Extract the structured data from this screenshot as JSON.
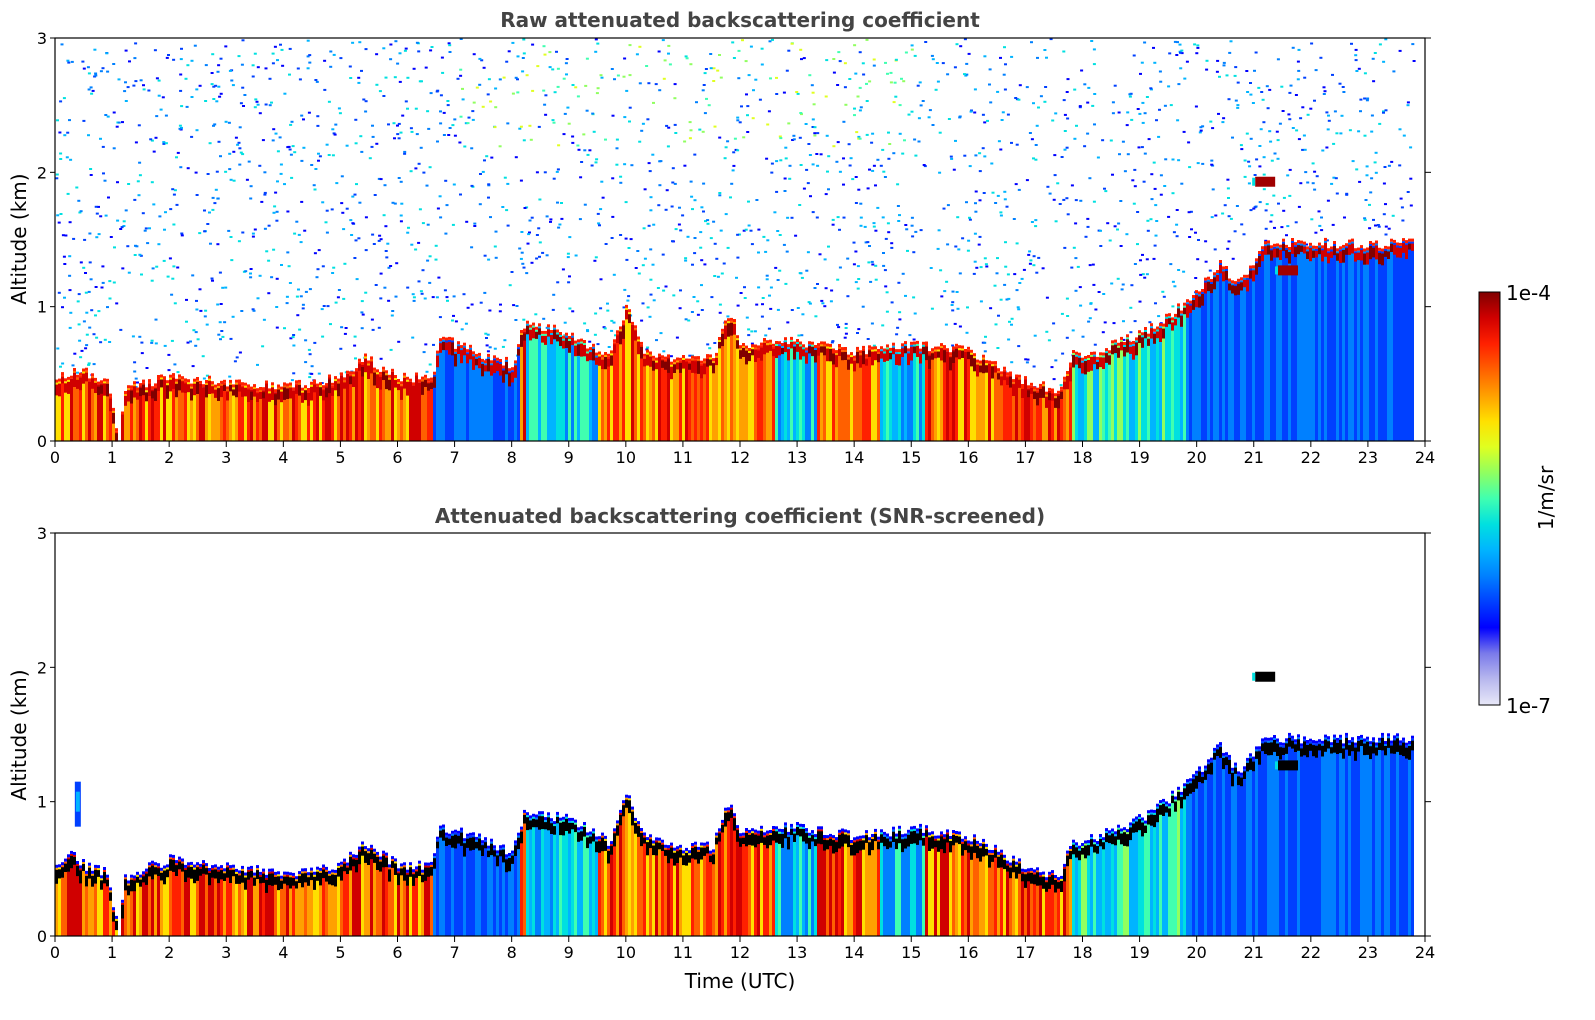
{
  "chart_data": [
    {
      "type": "heatmap",
      "title": "Raw attenuated backscattering coefficient",
      "xlabel": "",
      "ylabel": "Altitude (km)",
      "xlim": [
        0,
        24
      ],
      "ylim": [
        0,
        3
      ],
      "x_ticks": [
        0,
        1,
        2,
        3,
        4,
        5,
        6,
        7,
        8,
        9,
        10,
        11,
        12,
        13,
        14,
        15,
        16,
        17,
        18,
        19,
        20,
        21,
        22,
        23,
        24
      ],
      "y_ticks": [
        0,
        1,
        2,
        3
      ],
      "layer_top_km": [
        [
          0,
          0.45
        ],
        [
          0.5,
          0.5
        ],
        [
          0.9,
          0.4
        ],
        [
          1.1,
          0.0
        ],
        [
          1.2,
          0.38
        ],
        [
          2,
          0.45
        ],
        [
          3,
          0.42
        ],
        [
          4,
          0.38
        ],
        [
          5,
          0.45
        ],
        [
          5.4,
          0.6
        ],
        [
          6,
          0.45
        ],
        [
          6.6,
          0.45
        ],
        [
          6.7,
          0.75
        ],
        [
          7.5,
          0.62
        ],
        [
          8,
          0.55
        ],
        [
          8.2,
          0.85
        ],
        [
          9,
          0.78
        ],
        [
          9.7,
          0.6
        ],
        [
          10,
          1.0
        ],
        [
          10.3,
          0.65
        ],
        [
          11,
          0.58
        ],
        [
          11.5,
          0.6
        ],
        [
          11.8,
          0.95
        ],
        [
          12,
          0.7
        ],
        [
          13,
          0.72
        ],
        [
          14,
          0.65
        ],
        [
          15,
          0.7
        ],
        [
          16,
          0.65
        ],
        [
          17,
          0.42
        ],
        [
          17.6,
          0.35
        ],
        [
          17.8,
          0.62
        ],
        [
          18,
          0.6
        ],
        [
          19,
          0.78
        ],
        [
          19.5,
          0.9
        ],
        [
          20,
          1.1
        ],
        [
          20.4,
          1.3
        ],
        [
          20.7,
          1.15
        ],
        [
          21.0,
          1.3
        ],
        [
          21.2,
          1.45
        ]
      ],
      "features": [
        {
          "x": 21.2,
          "y": 1.93,
          "note": "small elevated layer"
        },
        {
          "x": 21.6,
          "y": 1.27,
          "note": "small elevated layer"
        }
      ],
      "data_end_hour": 23.8
    },
    {
      "type": "heatmap",
      "title": "Attenuated backscattering coefficient (SNR-screened)",
      "xlabel": "Time (UTC)",
      "ylabel": "Altitude (km)",
      "xlim": [
        0,
        24
      ],
      "ylim": [
        0,
        3
      ],
      "x_ticks": [
        0,
        1,
        2,
        3,
        4,
        5,
        6,
        7,
        8,
        9,
        10,
        11,
        12,
        13,
        14,
        15,
        16,
        17,
        18,
        19,
        20,
        21,
        22,
        23,
        24
      ],
      "y_ticks": [
        0,
        1,
        2,
        3
      ],
      "layer_top_km": [
        [
          0,
          0.5
        ],
        [
          0.3,
          0.6
        ],
        [
          0.5,
          0.5
        ],
        [
          0.9,
          0.45
        ],
        [
          1.1,
          0.0
        ],
        [
          1.2,
          0.42
        ],
        [
          2,
          0.55
        ],
        [
          3,
          0.5
        ],
        [
          4,
          0.45
        ],
        [
          5,
          0.5
        ],
        [
          5.4,
          0.68
        ],
        [
          6,
          0.5
        ],
        [
          6.6,
          0.5
        ],
        [
          6.7,
          0.8
        ],
        [
          7.5,
          0.7
        ],
        [
          8,
          0.6
        ],
        [
          8.2,
          0.9
        ],
        [
          9,
          0.85
        ],
        [
          9.7,
          0.68
        ],
        [
          10,
          1.05
        ],
        [
          10.3,
          0.72
        ],
        [
          11,
          0.65
        ],
        [
          11.5,
          0.65
        ],
        [
          11.8,
          1.0
        ],
        [
          12,
          0.75
        ],
        [
          13,
          0.8
        ],
        [
          14,
          0.72
        ],
        [
          15,
          0.78
        ],
        [
          16,
          0.72
        ],
        [
          17,
          0.5
        ],
        [
          17.6,
          0.42
        ],
        [
          17.8,
          0.7
        ],
        [
          18,
          0.68
        ],
        [
          19,
          0.85
        ],
        [
          19.5,
          1.0
        ],
        [
          20,
          1.2
        ],
        [
          20.4,
          1.4
        ],
        [
          20.7,
          1.2
        ],
        [
          21.0,
          1.35
        ],
        [
          21.2,
          1.45
        ]
      ],
      "features": [
        {
          "x": 21.2,
          "y": 1.93,
          "note": "small elevated layer"
        },
        {
          "x": 21.6,
          "y": 1.27,
          "note": "small elevated layer"
        },
        {
          "x": 0.4,
          "y": 1.0,
          "note": "thin aerosol patch"
        }
      ],
      "data_end_hour": 23.8
    }
  ],
  "colorbar": {
    "max_label": "1e-4",
    "min_label": "1e-7",
    "label": "1/m/sr",
    "colors": [
      "#e8e8f8",
      "#b8b8ee",
      "#7a7aea",
      "#0000ff",
      "#0040ff",
      "#0080ff",
      "#00b4ff",
      "#00e0e0",
      "#40ffb0",
      "#90ff60",
      "#e0ff20",
      "#ffe000",
      "#ffa000",
      "#ff6000",
      "#ff2000",
      "#d00000",
      "#800000"
    ]
  }
}
